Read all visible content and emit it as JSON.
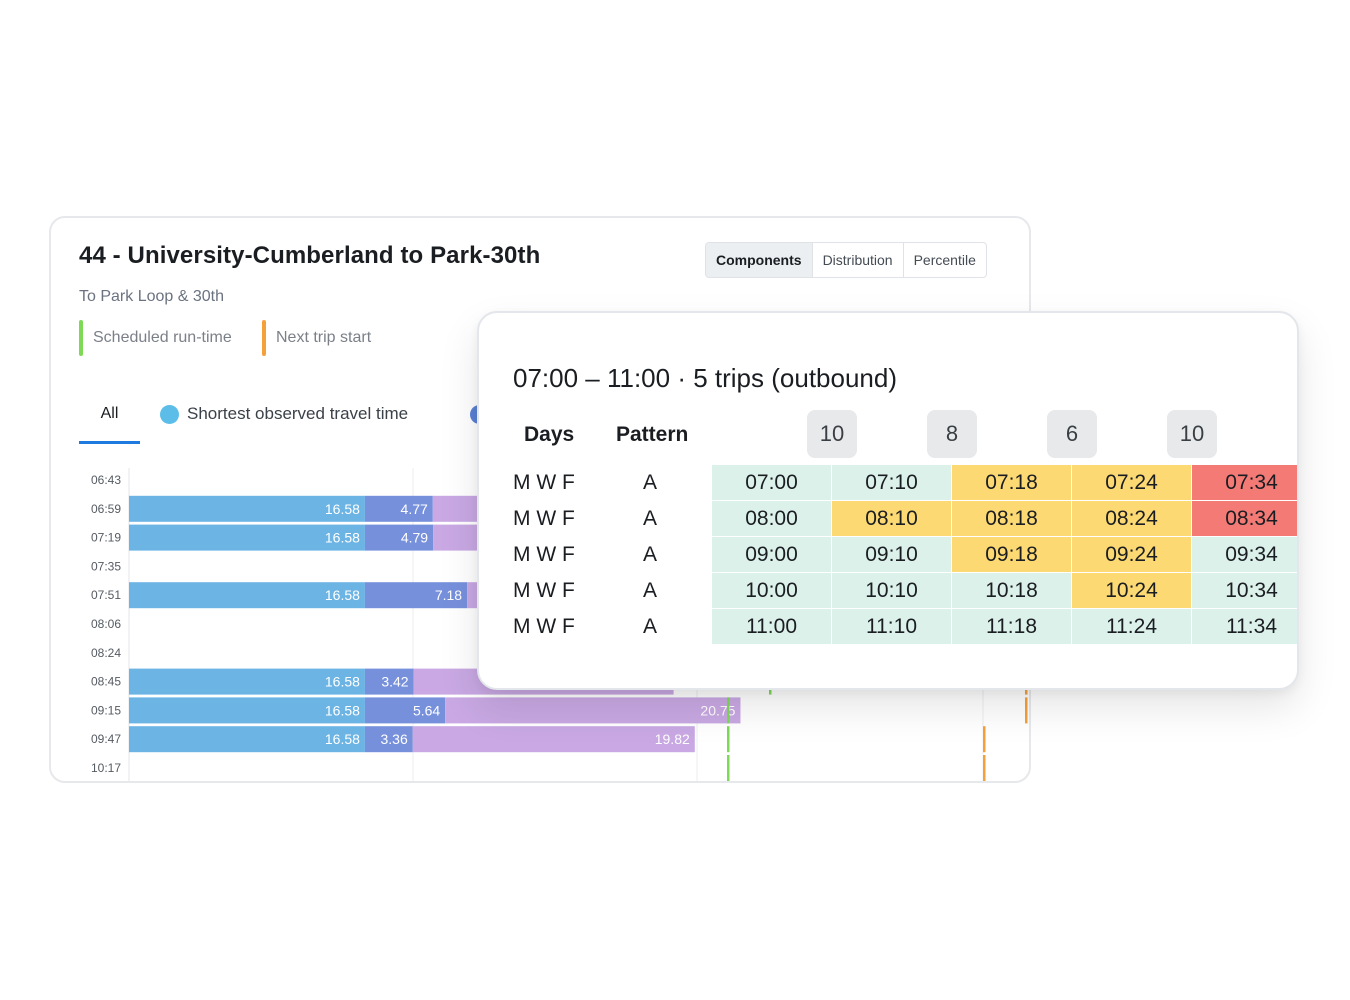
{
  "chart_card": {
    "title": "44 - University-Cumberland to Park-30th",
    "subtitle": "To Park Loop & 30th",
    "legend": [
      {
        "label": "Scheduled run-time",
        "color": "#7ed957"
      },
      {
        "label": "Next trip start",
        "color": "#f5a03a"
      }
    ],
    "view_toggle": {
      "options": [
        "Components",
        "Distribution",
        "Percentile"
      ],
      "selected": "Components"
    },
    "tabs": {
      "all_label": "All",
      "series": [
        {
          "label": "Shortest observed travel time",
          "color": "#5bbde8"
        }
      ],
      "hidden_series_dot_color": "#5b7fd6"
    }
  },
  "chart_data": {
    "type": "bar",
    "orientation": "horizontal",
    "stacked": true,
    "categories": [
      "06:43",
      "06:59",
      "07:19",
      "07:35",
      "07:51",
      "08:06",
      "08:24",
      "08:45",
      "09:15",
      "09:47",
      "10:17"
    ],
    "series": [
      {
        "name": "Shortest observed travel time",
        "color": "#6cb4e4",
        "values": [
          null,
          16.58,
          16.58,
          null,
          16.58,
          null,
          null,
          16.58,
          16.58,
          16.58,
          null
        ]
      },
      {
        "color": "#7790dc",
        "values": [
          null,
          4.77,
          4.79,
          null,
          7.18,
          null,
          null,
          3.42,
          5.64,
          3.36,
          null
        ]
      },
      {
        "color": "#c9a8e3",
        "values": [
          null,
          null,
          null,
          null,
          null,
          null,
          null,
          null,
          20.75,
          19.82,
          null
        ],
        "partially_hidden_values": [
          true,
          true,
          true,
          true,
          true,
          true,
          true,
          true,
          false,
          false,
          false
        ]
      }
    ],
    "scheduled_marker_color": "#7ed957",
    "next_trip_marker_color": "#f5a03a",
    "grid": true
  },
  "detail_card": {
    "title": "07:00 – 11:00 · 5 trips (outbound)",
    "headers": {
      "days": "Days",
      "pattern": "Pattern"
    },
    "headways": [
      "10",
      "8",
      "6",
      "10"
    ],
    "rows": [
      {
        "days": "M W F",
        "pattern": "A",
        "cells": [
          {
            "t": "07:00",
            "s": "green"
          },
          {
            "t": "07:10",
            "s": "green"
          },
          {
            "t": "07:18",
            "s": "yellow"
          },
          {
            "t": "07:24",
            "s": "yellow"
          },
          {
            "t": "07:34",
            "s": "red"
          }
        ]
      },
      {
        "days": "M W F",
        "pattern": "A",
        "cells": [
          {
            "t": "08:00",
            "s": "green"
          },
          {
            "t": "08:10",
            "s": "yellow"
          },
          {
            "t": "08:18",
            "s": "yellow"
          },
          {
            "t": "08:24",
            "s": "yellow"
          },
          {
            "t": "08:34",
            "s": "red"
          }
        ]
      },
      {
        "days": "M W F",
        "pattern": "A",
        "cells": [
          {
            "t": "09:00",
            "s": "green"
          },
          {
            "t": "09:10",
            "s": "green"
          },
          {
            "t": "09:18",
            "s": "yellow"
          },
          {
            "t": "09:24",
            "s": "yellow"
          },
          {
            "t": "09:34",
            "s": "green"
          }
        ]
      },
      {
        "days": "M W F",
        "pattern": "A",
        "cells": [
          {
            "t": "10:00",
            "s": "green"
          },
          {
            "t": "10:10",
            "s": "green"
          },
          {
            "t": "10:18",
            "s": "green"
          },
          {
            "t": "10:24",
            "s": "yellow"
          },
          {
            "t": "10:34",
            "s": "green"
          }
        ]
      },
      {
        "days": "M W F",
        "pattern": "A",
        "cells": [
          {
            "t": "11:00",
            "s": "green"
          },
          {
            "t": "11:10",
            "s": "green"
          },
          {
            "t": "11:18",
            "s": "green"
          },
          {
            "t": "11:24",
            "s": "green"
          },
          {
            "t": "11:34",
            "s": "green"
          }
        ]
      }
    ]
  }
}
